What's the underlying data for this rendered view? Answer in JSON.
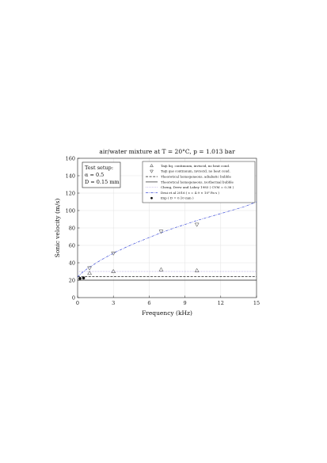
{
  "chart_data": {
    "type": "line",
    "title": "air/water mixture at T = 20°C, p = 1.013 bar",
    "xlabel": "Frequency (kHz)",
    "ylabel": "Sonic velocity (m/s)",
    "xlim": [
      0,
      15
    ],
    "ylim": [
      0,
      160
    ],
    "xticks": [
      "0",
      "3",
      "6",
      "9",
      "12",
      "15"
    ],
    "yticks": [
      "0",
      "20",
      "40",
      "60",
      "80",
      "100",
      "120",
      "140",
      "160"
    ],
    "grid": true,
    "legend_position": "top-right",
    "setup_box": {
      "heading": "Test setup:",
      "lines": [
        "α = 0.5",
        "D = 0.15 mm"
      ]
    },
    "series": [
      {
        "name": "Taiji liq. continuum, inviscid, no heat cond.",
        "kind": "markers",
        "marker": "triangle-up",
        "x": [
          1,
          3,
          7,
          10
        ],
        "y": [
          28,
          30,
          32,
          31
        ]
      },
      {
        "name": "Taiji gas continuum, inviscid, no heat cond.",
        "kind": "markers",
        "marker": "triangle-down",
        "x": [
          1,
          3,
          7,
          10
        ],
        "y": [
          34,
          51,
          76,
          84
        ]
      },
      {
        "name": "Theoretical homogeneous, adiabatic bubble",
        "kind": "line",
        "style": "dashed",
        "color": "#222222",
        "x": [
          0,
          15
        ],
        "y": [
          24,
          24
        ]
      },
      {
        "name": "Theoretical homogeneous, isothermal bubble",
        "kind": "line",
        "style": "solid",
        "color": "#222222",
        "x": [
          0,
          15
        ],
        "y": [
          20,
          20
        ]
      },
      {
        "name": "Cheng, Drew and Lahey 1983 ( CVM = 0.38 )",
        "kind": "line",
        "style": "dotted",
        "color": "#8e7fd6",
        "x": [
          0,
          15
        ],
        "y": [
          30,
          30
        ]
      },
      {
        "name": "Drui et al 2016 ( ε = 4.9 × 10³ Pa·s )",
        "kind": "line",
        "style": "dashdot",
        "color": "#3f4fd8",
        "x": [
          0,
          0.5,
          1,
          2,
          3,
          4,
          5,
          6,
          7,
          8,
          9,
          10,
          11,
          12,
          13,
          14,
          15
        ],
        "y": [
          24,
          30,
          35,
          43.5,
          51,
          57.5,
          63.5,
          69,
          74.5,
          79.5,
          84,
          88.5,
          92.5,
          96.5,
          100.5,
          104.5,
          110
        ]
      },
      {
        "name": "Exp ( D = 0.10 mm )",
        "kind": "markers",
        "marker": "dot",
        "x": [
          0.2,
          0.5
        ],
        "y": [
          22,
          22.5
        ]
      }
    ]
  }
}
